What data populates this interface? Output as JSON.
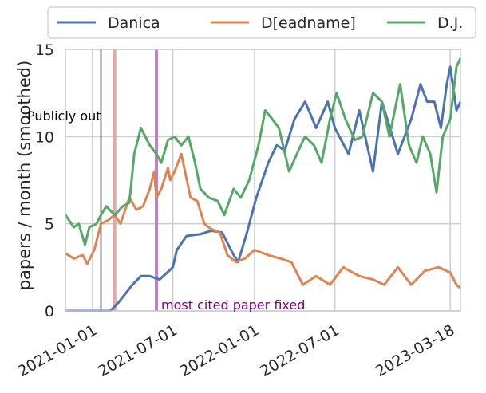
{
  "chart_data": {
    "type": "line",
    "title": "",
    "xlabel": "",
    "ylabel": "papers / month (smoothed)",
    "ylim": [
      0,
      15
    ],
    "yticks": [
      0,
      5,
      10,
      15
    ],
    "xlim": [
      "2020-11-01",
      "2023-04-10"
    ],
    "xticks": [
      "2021-01-01",
      "2021-07-01",
      "2022-01-01",
      "2022-07-01",
      "2023-03-18"
    ],
    "grid": true,
    "legend_placement": "top, outside plot, 3 columns",
    "series": [
      {
        "name": "Danica",
        "color": "#4c72b0",
        "x": [
          "2020-11-01",
          "2021-01-20",
          "2021-02-10",
          "2021-03-01",
          "2021-04-01",
          "2021-04-20",
          "2021-05-10",
          "2021-06-01",
          "2021-07-01",
          "2021-07-10",
          "2021-08-01",
          "2021-09-01",
          "2021-09-25",
          "2021-10-20",
          "2021-11-15",
          "2021-11-25",
          "2021-12-15",
          "2022-01-05",
          "2022-02-01",
          "2022-02-20",
          "2022-03-10",
          "2022-04-01",
          "2022-04-25",
          "2022-05-20",
          "2022-06-15",
          "2022-07-01",
          "2022-08-01",
          "2022-08-25",
          "2022-09-25",
          "2022-10-15",
          "2022-11-20",
          "2022-12-20",
          "2023-01-10",
          "2023-01-25",
          "2023-02-10",
          "2023-02-25",
          "2023-03-10",
          "2023-03-18",
          "2023-04-01",
          "2023-04-10"
        ],
        "values": [
          0,
          0,
          0,
          0.5,
          1.5,
          2,
          2,
          1.8,
          2.5,
          3.5,
          4.3,
          4.4,
          4.6,
          4.5,
          3.2,
          2.8,
          4.5,
          6.5,
          8.5,
          9.5,
          9.2,
          11,
          12,
          10.5,
          12,
          10.5,
          9,
          11.5,
          8,
          12,
          9,
          11,
          13,
          12,
          12,
          10.5,
          13,
          14,
          11.5,
          12
        ]
      },
      {
        "name": "D[eadname]",
        "color": "#dd8452",
        "x": [
          "2020-11-01",
          "2020-11-20",
          "2020-12-10",
          "2020-12-20",
          "2021-01-05",
          "2021-01-15",
          "2021-01-20",
          "2021-02-05",
          "2021-02-20",
          "2021-03-05",
          "2021-03-25",
          "2021-04-10",
          "2021-04-25",
          "2021-05-10",
          "2021-05-20",
          "2021-05-25",
          "2021-06-05",
          "2021-06-20",
          "2021-06-25",
          "2021-07-05",
          "2021-07-20",
          "2021-08-10",
          "2021-08-25",
          "2021-09-10",
          "2021-09-25",
          "2021-10-15",
          "2021-11-01",
          "2021-11-20",
          "2021-12-10",
          "2022-01-01",
          "2022-02-01",
          "2022-03-01",
          "2022-03-25",
          "2022-04-20",
          "2022-05-20",
          "2022-06-20",
          "2022-07-20",
          "2022-08-25",
          "2022-09-25",
          "2022-10-20",
          "2022-11-20",
          "2022-12-20",
          "2023-01-20",
          "2023-02-20",
          "2023-03-18",
          "2023-04-01",
          "2023-04-10"
        ],
        "values": [
          3.3,
          3,
          3.2,
          2.7,
          3.5,
          4.5,
          5,
          5.2,
          5.5,
          5,
          6.5,
          5.8,
          6,
          7,
          8,
          6.5,
          7,
          8.2,
          7.5,
          8,
          9,
          6.5,
          6.3,
          5,
          4.7,
          4.5,
          3.2,
          2.8,
          3,
          3.5,
          3.2,
          3,
          2.8,
          1.5,
          2,
          1.5,
          2.5,
          2,
          1.8,
          1.5,
          2.5,
          1.5,
          2.3,
          2.5,
          2.2,
          1.5,
          1.3
        ]
      },
      {
        "name": "D.J.",
        "color": "#55a868",
        "x": [
          "2020-11-01",
          "2020-11-20",
          "2020-12-01",
          "2020-12-15",
          "2020-12-25",
          "2021-01-10",
          "2021-01-20",
          "2021-02-01",
          "2021-02-20",
          "2021-03-10",
          "2021-03-25",
          "2021-04-05",
          "2021-04-20",
          "2021-05-10",
          "2021-05-25",
          "2021-06-05",
          "2021-06-20",
          "2021-07-05",
          "2021-07-20",
          "2021-08-05",
          "2021-08-20",
          "2021-09-01",
          "2021-09-20",
          "2021-10-10",
          "2021-10-25",
          "2021-11-15",
          "2021-12-01",
          "2021-12-20",
          "2022-01-10",
          "2022-01-25",
          "2022-02-10",
          "2022-02-25",
          "2022-03-20",
          "2022-04-10",
          "2022-04-25",
          "2022-05-15",
          "2022-06-01",
          "2022-06-20",
          "2022-07-05",
          "2022-07-25",
          "2022-08-15",
          "2022-09-01",
          "2022-09-25",
          "2022-10-15",
          "2022-11-01",
          "2022-11-25",
          "2022-12-15",
          "2023-01-01",
          "2023-01-15",
          "2023-02-01",
          "2023-02-15",
          "2023-03-01",
          "2023-03-18",
          "2023-04-01",
          "2023-04-10"
        ],
        "values": [
          5.5,
          4.8,
          5,
          3.8,
          4.8,
          5,
          5.5,
          6,
          5.5,
          6,
          6.2,
          9,
          10.5,
          9.5,
          9,
          8.5,
          9.8,
          10,
          9.5,
          10,
          8.5,
          7,
          6.5,
          6.3,
          5.5,
          7,
          6.5,
          7.5,
          9.5,
          11.5,
          11,
          10.5,
          8,
          9.2,
          10,
          9.5,
          8.5,
          11,
          12.5,
          11,
          9.8,
          10,
          12.5,
          12,
          10,
          13,
          9.5,
          8.5,
          10,
          9,
          6.8,
          10,
          11,
          14,
          14.5
        ]
      }
    ],
    "annotations": [
      {
        "label": "Publicly out",
        "date": "2021-01-20",
        "color": "#000000"
      },
      {
        "label": "",
        "date": "2021-02-20",
        "color": "#e8a5a5"
      },
      {
        "label": "most cited paper fixed",
        "date": "2021-05-25",
        "color": "#bf80c8",
        "text_color": "#800080"
      }
    ]
  }
}
